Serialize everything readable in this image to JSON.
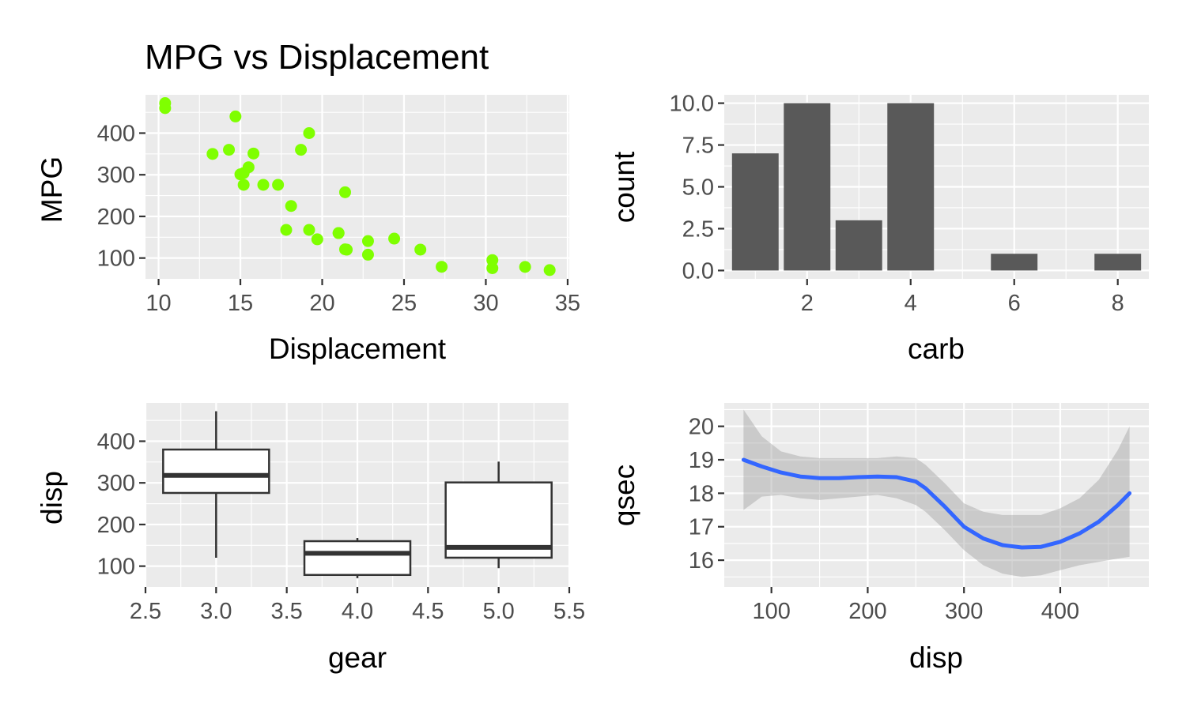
{
  "colors": {
    "panel": "#ebebeb",
    "point": "#7fff00",
    "bar": "#595959",
    "box_line": "#333333",
    "smooth_line": "#3366ff",
    "ribbon": "#c8c8c8"
  },
  "chart_data": [
    {
      "id": "scatter",
      "type": "scatter",
      "title": "MPG vs Displacement",
      "xlabel": "Displacement",
      "ylabel": "MPG",
      "xlim": [
        9.2,
        35.1
      ],
      "ylim": [
        50,
        492
      ],
      "xticks": [
        10,
        15,
        20,
        25,
        30,
        35
      ],
      "yticks": [
        100,
        200,
        300,
        400
      ],
      "grid": true,
      "points": [
        {
          "x": 21.0,
          "y": 160
        },
        {
          "x": 21.0,
          "y": 160
        },
        {
          "x": 22.8,
          "y": 108
        },
        {
          "x": 21.4,
          "y": 258
        },
        {
          "x": 18.7,
          "y": 360
        },
        {
          "x": 18.1,
          "y": 225
        },
        {
          "x": 14.3,
          "y": 360
        },
        {
          "x": 24.4,
          "y": 146.7
        },
        {
          "x": 22.8,
          "y": 140.8
        },
        {
          "x": 19.2,
          "y": 167.6
        },
        {
          "x": 17.8,
          "y": 167.6
        },
        {
          "x": 16.4,
          "y": 275.8
        },
        {
          "x": 17.3,
          "y": 275.8
        },
        {
          "x": 15.2,
          "y": 275.8
        },
        {
          "x": 10.4,
          "y": 472
        },
        {
          "x": 10.4,
          "y": 460
        },
        {
          "x": 14.7,
          "y": 440
        },
        {
          "x": 32.4,
          "y": 78.7
        },
        {
          "x": 30.4,
          "y": 75.7
        },
        {
          "x": 33.9,
          "y": 71.1
        },
        {
          "x": 21.5,
          "y": 120.1
        },
        {
          "x": 15.5,
          "y": 318
        },
        {
          "x": 15.2,
          "y": 304
        },
        {
          "x": 13.3,
          "y": 350
        },
        {
          "x": 19.2,
          "y": 400
        },
        {
          "x": 27.3,
          "y": 79
        },
        {
          "x": 26.0,
          "y": 120.3
        },
        {
          "x": 30.4,
          "y": 95.1
        },
        {
          "x": 15.8,
          "y": 351
        },
        {
          "x": 19.7,
          "y": 145
        },
        {
          "x": 15.0,
          "y": 301
        },
        {
          "x": 21.4,
          "y": 121
        }
      ]
    },
    {
      "id": "bars",
      "type": "bar",
      "xlabel": "carb",
      "ylabel": "count",
      "xlim": [
        0.4,
        8.6
      ],
      "ylim": [
        -0.5,
        10.5
      ],
      "xticks": [
        2,
        4,
        6,
        8
      ],
      "ytick_values": [
        0,
        2.5,
        5,
        7.5,
        10
      ],
      "ytick_labels": [
        "0.0",
        "2.5",
        "5.0",
        "7.5",
        "10.0"
      ],
      "grid": true,
      "bar_width": 0.9,
      "categories": [
        1,
        2,
        3,
        4,
        6,
        8
      ],
      "values": [
        7,
        10,
        3,
        10,
        1,
        1
      ]
    },
    {
      "id": "boxes",
      "type": "box",
      "xlabel": "gear",
      "ylabel": "disp",
      "xlim": [
        2.5,
        5.5
      ],
      "ylim": [
        50,
        492
      ],
      "xticks": [
        2.5,
        3.0,
        3.5,
        4.0,
        4.5,
        5.0,
        5.5
      ],
      "xtick_labels": [
        "2.5",
        "3.0",
        "3.5",
        "4.0",
        "4.5",
        "5.0",
        "5.5"
      ],
      "yticks": [
        100,
        200,
        300,
        400
      ],
      "grid": true,
      "box_width": 0.75,
      "boxes": [
        {
          "x": 3,
          "min": 120.1,
          "q1": 275.8,
          "median": 318,
          "q3": 380,
          "max": 472
        },
        {
          "x": 4,
          "min": 71.1,
          "q1": 78.9,
          "median": 130.9,
          "q3": 160,
          "max": 167.6
        },
        {
          "x": 5,
          "min": 95.1,
          "q1": 120.3,
          "median": 145,
          "q3": 301,
          "max": 351
        }
      ]
    },
    {
      "id": "smooth",
      "type": "line",
      "xlabel": "disp",
      "ylabel": "qsec",
      "xlim": [
        51,
        492
      ],
      "ylim": [
        15.2,
        20.7
      ],
      "xticks": [
        100,
        200,
        300,
        400
      ],
      "yticks": [
        16,
        17,
        18,
        19,
        20
      ],
      "grid": true,
      "x": [
        71,
        90,
        110,
        130,
        150,
        170,
        190,
        210,
        230,
        250,
        260,
        280,
        300,
        320,
        340,
        360,
        380,
        400,
        420,
        440,
        460,
        472
      ],
      "y": [
        19.0,
        18.8,
        18.62,
        18.5,
        18.45,
        18.45,
        18.48,
        18.5,
        18.48,
        18.35,
        18.15,
        17.6,
        17.0,
        16.65,
        16.45,
        16.38,
        16.4,
        16.55,
        16.8,
        17.15,
        17.65,
        18.0
      ],
      "lower": [
        17.5,
        17.9,
        17.95,
        17.85,
        17.8,
        17.85,
        17.9,
        17.95,
        17.85,
        17.65,
        17.45,
        16.9,
        16.3,
        15.85,
        15.6,
        15.5,
        15.55,
        15.7,
        15.85,
        15.95,
        16.05,
        16.1
      ],
      "upper": [
        20.5,
        19.7,
        19.25,
        19.1,
        19.05,
        19.05,
        19.05,
        19.05,
        19.1,
        19.05,
        18.85,
        18.3,
        17.7,
        17.45,
        17.35,
        17.35,
        17.35,
        17.55,
        17.85,
        18.4,
        19.3,
        20.0
      ]
    }
  ]
}
